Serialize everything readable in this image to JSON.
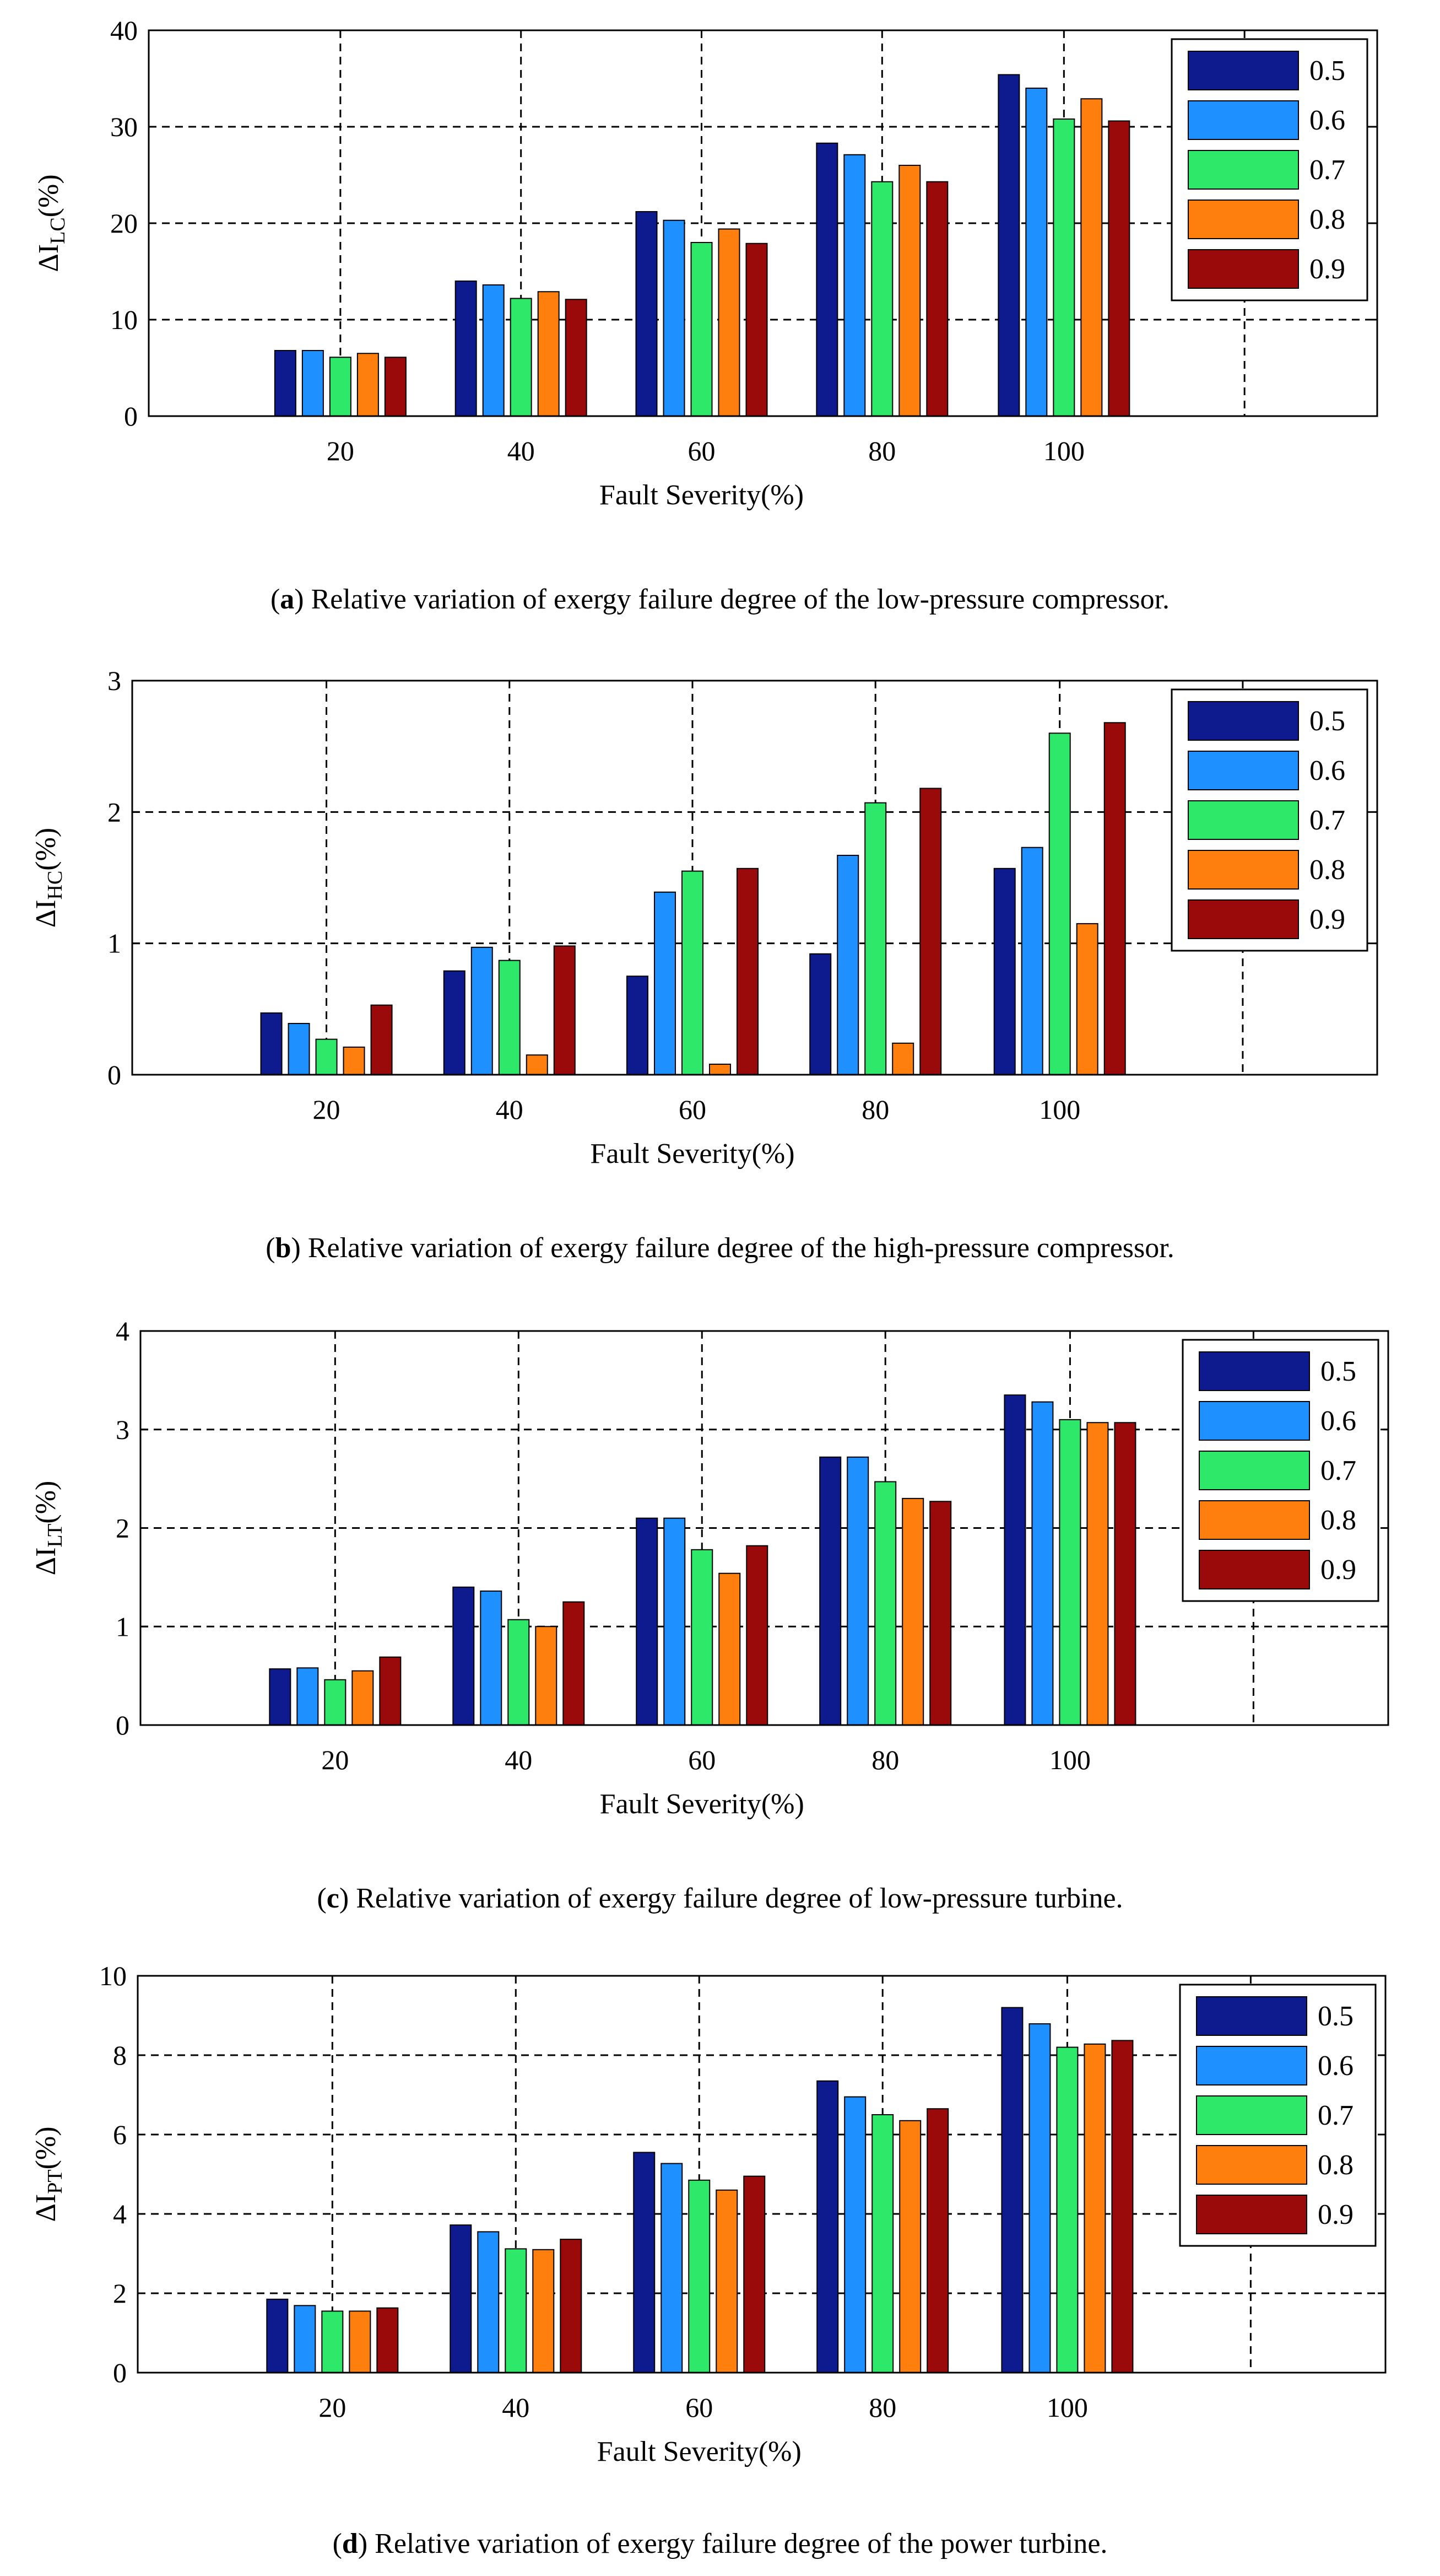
{
  "chart_data": [
    {
      "type": "bar",
      "panel_label": "a",
      "ylabel_main": "ΔI",
      "ylabel_sub": "LC",
      "ylabel_suffix": "(%)",
      "xlabel": "Fault Severity(%)",
      "caption_text": "Relative variation of exergy failure degree of the low-pressure compressor.",
      "categories": [
        "20",
        "40",
        "60",
        "80",
        "100"
      ],
      "ylim": [
        0,
        40
      ],
      "yticks": [
        "0",
        "10",
        "20",
        "30",
        "40"
      ],
      "grid": true,
      "legend_position": "top-right",
      "series": [
        {
          "name": "0.5",
          "color": "#0d1b8f",
          "values": [
            6.8,
            14.0,
            21.2,
            28.3,
            35.4
          ]
        },
        {
          "name": "0.6",
          "color": "#1e90ff",
          "values": [
            6.8,
            13.6,
            20.3,
            27.1,
            34.0
          ]
        },
        {
          "name": "0.7",
          "color": "#2ee86a",
          "values": [
            6.1,
            12.2,
            18.0,
            24.3,
            30.8
          ]
        },
        {
          "name": "0.8",
          "color": "#ff7f0e",
          "values": [
            6.5,
            12.9,
            19.4,
            26.0,
            32.9
          ]
        },
        {
          "name": "0.9",
          "color": "#9b0a0a",
          "values": [
            6.1,
            12.1,
            17.9,
            24.3,
            30.6
          ]
        }
      ]
    },
    {
      "type": "bar",
      "panel_label": "b",
      "ylabel_main": "ΔI",
      "ylabel_sub": "HC",
      "ylabel_suffix": "(%)",
      "xlabel": "Fault Severity(%)",
      "caption_text": "Relative variation of exergy failure degree of the high-pressure compressor.",
      "categories": [
        "20",
        "40",
        "60",
        "80",
        "100"
      ],
      "ylim": [
        0,
        3
      ],
      "yticks": [
        "0",
        "1",
        "2",
        "3"
      ],
      "grid": true,
      "legend_position": "top-right",
      "series": [
        {
          "name": "0.5",
          "color": "#0d1b8f",
          "values": [
            0.47,
            0.79,
            0.75,
            0.92,
            1.57
          ]
        },
        {
          "name": "0.6",
          "color": "#1e90ff",
          "values": [
            0.39,
            0.97,
            1.39,
            1.67,
            1.73
          ]
        },
        {
          "name": "0.7",
          "color": "#2ee86a",
          "values": [
            0.27,
            0.87,
            1.55,
            2.07,
            2.6
          ]
        },
        {
          "name": "0.8",
          "color": "#ff7f0e",
          "values": [
            0.21,
            0.15,
            0.08,
            0.24,
            1.15
          ]
        },
        {
          "name": "0.9",
          "color": "#9b0a0a",
          "values": [
            0.53,
            0.98,
            1.57,
            2.18,
            2.68
          ]
        }
      ]
    },
    {
      "type": "bar",
      "panel_label": "c",
      "ylabel_main": "ΔI",
      "ylabel_sub": "LT",
      "ylabel_suffix": "(%)",
      "xlabel": "Fault Severity(%)",
      "caption_text": "Relative variation of exergy failure degree of low-pressure turbine.",
      "categories": [
        "20",
        "40",
        "60",
        "80",
        "100"
      ],
      "ylim": [
        0,
        4
      ],
      "yticks": [
        "0",
        "1",
        "2",
        "3",
        "4"
      ],
      "grid": true,
      "legend_position": "top-right",
      "series": [
        {
          "name": "0.5",
          "color": "#0d1b8f",
          "values": [
            0.57,
            1.4,
            2.1,
            2.72,
            3.35
          ]
        },
        {
          "name": "0.6",
          "color": "#1e90ff",
          "values": [
            0.58,
            1.36,
            2.1,
            2.72,
            3.28
          ]
        },
        {
          "name": "0.7",
          "color": "#2ee86a",
          "values": [
            0.46,
            1.07,
            1.78,
            2.47,
            3.1
          ]
        },
        {
          "name": "0.8",
          "color": "#ff7f0e",
          "values": [
            0.55,
            1.0,
            1.54,
            2.3,
            3.07
          ]
        },
        {
          "name": "0.9",
          "color": "#9b0a0a",
          "values": [
            0.69,
            1.25,
            1.82,
            2.27,
            3.07
          ]
        }
      ]
    },
    {
      "type": "bar",
      "panel_label": "d",
      "ylabel_main": "ΔI",
      "ylabel_sub": "PT",
      "ylabel_suffix": "(%)",
      "xlabel": "Fault Severity(%)",
      "caption_text": "Relative variation of exergy failure degree of the power turbine.",
      "categories": [
        "20",
        "40",
        "60",
        "80",
        "100"
      ],
      "ylim": [
        0,
        10
      ],
      "yticks": [
        "0",
        "2",
        "4",
        "6",
        "8",
        "10"
      ],
      "grid": true,
      "legend_position": "top-right",
      "series": [
        {
          "name": "0.5",
          "color": "#0d1b8f",
          "values": [
            1.85,
            3.72,
            5.55,
            7.35,
            9.2
          ]
        },
        {
          "name": "0.6",
          "color": "#1e90ff",
          "values": [
            1.69,
            3.55,
            5.27,
            6.95,
            8.79
          ]
        },
        {
          "name": "0.7",
          "color": "#2ee86a",
          "values": [
            1.55,
            3.12,
            4.85,
            6.5,
            8.2
          ]
        },
        {
          "name": "0.8",
          "color": "#ff7f0e",
          "values": [
            1.55,
            3.1,
            4.6,
            6.35,
            8.28
          ]
        },
        {
          "name": "0.9",
          "color": "#9b0a0a",
          "values": [
            1.63,
            3.36,
            4.95,
            6.65,
            8.37
          ]
        }
      ]
    }
  ]
}
